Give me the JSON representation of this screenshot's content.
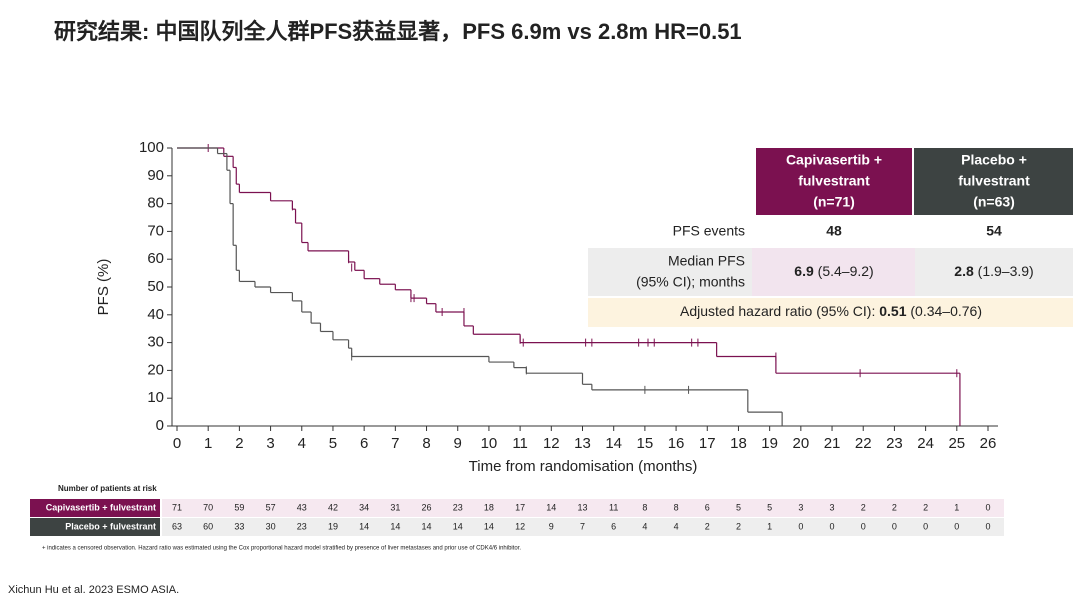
{
  "title": "研究结果: 中国队列全人群PFS获益显著，PFS 6.9m vs 2.8m HR=0.51",
  "chart_data": {
    "type": "step",
    "x_label": "Time from randomisation (months)",
    "y_label": "PFS (%)",
    "xlim": [
      0,
      26
    ],
    "ylim": [
      0,
      100
    ],
    "xticks": [
      0,
      1,
      2,
      3,
      4,
      5,
      6,
      7,
      8,
      9,
      10,
      11,
      12,
      13,
      14,
      15,
      16,
      17,
      18,
      19,
      20,
      21,
      22,
      23,
      24,
      25,
      26
    ],
    "yticks": [
      0,
      10,
      20,
      30,
      40,
      50,
      60,
      70,
      80,
      90,
      100
    ],
    "series": [
      {
        "name": "Capivasertib + fulvestrant",
        "color": "#7b1150",
        "x": [
          0,
          1.5,
          1.8,
          1.9,
          2.0,
          3.0,
          3.7,
          3.8,
          4.0,
          4.2,
          5.5,
          5.7,
          6.0,
          6.5,
          7.0,
          7.5,
          8.0,
          8.3,
          9.2,
          9.5,
          11.0,
          17.3,
          19.2,
          25.1
        ],
        "values": [
          100,
          97,
          93,
          87,
          84,
          81,
          78,
          73,
          66,
          63,
          59,
          56,
          53,
          51,
          49,
          46,
          44,
          41,
          36,
          33,
          30,
          25,
          19,
          0
        ],
        "censor_x": [
          1.0,
          3.7,
          3.8,
          5.5,
          5.6,
          7.5,
          7.6,
          8.5,
          9.2,
          11.0,
          11.1,
          13.1,
          13.3,
          14.8,
          15.1,
          15.3,
          16.5,
          16.7,
          19.2,
          21.9,
          25.0
        ],
        "censor_y": [
          100,
          79,
          76,
          60,
          57,
          46,
          46,
          41,
          41,
          31,
          30,
          30,
          30,
          30,
          30,
          30,
          30,
          30,
          25,
          19,
          19
        ]
      },
      {
        "name": "Placebo + fulvestrant",
        "color": "#555555",
        "x": [
          0,
          1.3,
          1.6,
          1.7,
          1.8,
          1.9,
          2.0,
          2.5,
          3.0,
          3.7,
          4.0,
          4.3,
          4.6,
          5.0,
          5.5,
          5.6,
          10.0,
          10.8,
          11.2,
          13.0,
          13.3,
          18.3,
          19.4
        ],
        "values": [
          100,
          98,
          92,
          80,
          65,
          56,
          52,
          50,
          48,
          45,
          41,
          37,
          34,
          31,
          28,
          25,
          23,
          21,
          19,
          15,
          13,
          5,
          0
        ],
        "censor_x": [
          5.6,
          11.2,
          15.0,
          16.4
        ],
        "censor_y": [
          25,
          20,
          13,
          13
        ]
      }
    ]
  },
  "results_table": {
    "headers": [
      [
        "Capivasertib +",
        "fulvestrant",
        "(n=71)"
      ],
      [
        "Placebo +",
        "fulvestrant",
        "(n=63)"
      ]
    ],
    "pfs_events": {
      "label": "PFS events",
      "values": [
        "48",
        "54"
      ]
    },
    "median_pfs": {
      "label": [
        "Median PFS",
        "(95% CI); months"
      ],
      "values": [
        {
          "median": "6.9",
          "ci": " (5.4–9.2)"
        },
        {
          "median": "2.8",
          "ci": " (1.9–3.9)"
        }
      ]
    },
    "hazard_ratio": {
      "label": "Adjusted hazard ratio (95% CI): ",
      "value": "0.51",
      "ci": " (0.34–0.76)"
    }
  },
  "risk_table": {
    "title": "Number of patients at risk",
    "rows": [
      [
        "71",
        "70",
        "59",
        "57",
        "43",
        "42",
        "34",
        "31",
        "26",
        "23",
        "18",
        "17",
        "14",
        "13",
        "11",
        "8",
        "8",
        "6",
        "5",
        "5",
        "3",
        "3",
        "2",
        "2",
        "2",
        "1",
        "0"
      ],
      [
        "63",
        "60",
        "33",
        "30",
        "23",
        "19",
        "14",
        "14",
        "14",
        "14",
        "14",
        "12",
        "9",
        "7",
        "6",
        "4",
        "4",
        "2",
        "2",
        "1",
        "0",
        "0",
        "0",
        "0",
        "0",
        "0",
        "0"
      ]
    ]
  },
  "footnote": "+ indicates a censored observation. Hazard ratio was estimated using the Cox proportional hazard model stratified by presence of liver metastases and prior use of CDK4/6 inhibitor.",
  "citation": "Xichun Hu et al. 2023 ESMO ASIA."
}
